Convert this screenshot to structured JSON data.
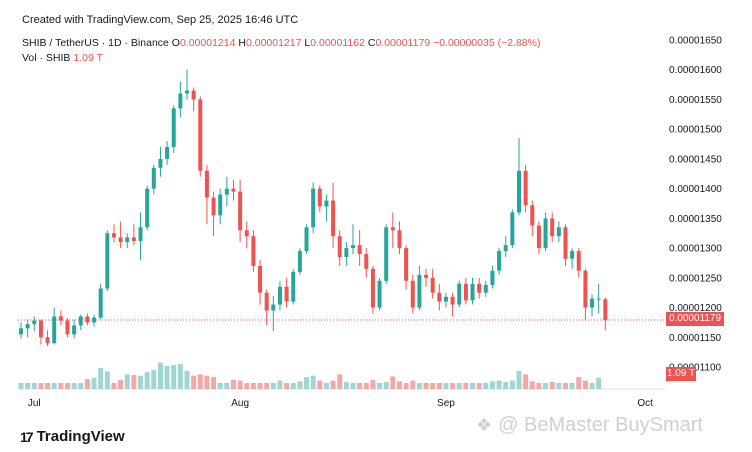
{
  "header": {
    "created": "Created with TradingView.com, Sep 25, 2025 16:46 UTC",
    "symbol": "SHIB / TetherUS · 1D · Binance",
    "ohlc": {
      "o_label": "O",
      "o": "0.00001214",
      "h_label": "H",
      "h": "0.00001217",
      "l_label": "L",
      "l": "0.00001162",
      "c_label": "C",
      "c": "0.00001179",
      "change": "−0.00000035 (−2.88%)"
    },
    "vol_label": "Vol · SHIB",
    "vol_value": "1.09 T"
  },
  "price_tag": "0.00001179",
  "vol_tag": "1.09 T",
  "brand": {
    "logo_mark": "17",
    "name": "TradingView"
  },
  "watermark": {
    "icon": "diamond-logo-icon",
    "text": "@ BeMaster BuySmart"
  },
  "colors": {
    "up": "#26a69a",
    "down": "#ef5350",
    "vol_up": "#9fd6cf",
    "vol_down": "#f4a8a6"
  },
  "chart_data": {
    "type": "candlestick",
    "y_axis": {
      "ticks": [
        "0.00001650",
        "0.00001600",
        "0.00001550",
        "0.00001500",
        "0.00001450",
        "0.00001400",
        "0.00001350",
        "0.00001300",
        "0.00001250",
        "0.00001200",
        "0.00001150",
        "0.00001100"
      ],
      "range": [
        1.09e-05,
        1.66e-05
      ],
      "position": "right"
    },
    "x_axis": {
      "labels": [
        {
          "text": "Jul",
          "index": 2
        },
        {
          "text": "Aug",
          "index": 33
        },
        {
          "text": "Sep",
          "index": 64
        },
        {
          "text": "Oct",
          "index": 94
        }
      ]
    },
    "last_close": 1.179e-05,
    "candles": [
      [
        1.155,
        1.175,
        1.148,
        1.165
      ],
      [
        1.165,
        1.18,
        1.15,
        1.172
      ],
      [
        1.172,
        1.185,
        1.16,
        1.178
      ],
      [
        1.178,
        1.18,
        1.138,
        1.15
      ],
      [
        1.15,
        1.162,
        1.135,
        1.14
      ],
      [
        1.14,
        1.2,
        1.138,
        1.185
      ],
      [
        1.185,
        1.195,
        1.17,
        1.178
      ],
      [
        1.178,
        1.182,
        1.15,
        1.155
      ],
      [
        1.155,
        1.18,
        1.148,
        1.17
      ],
      [
        1.17,
        1.188,
        1.162,
        1.185
      ],
      [
        1.185,
        1.19,
        1.17,
        1.175
      ],
      [
        1.175,
        1.188,
        1.168,
        1.183
      ],
      [
        1.183,
        1.24,
        1.18,
        1.232
      ],
      [
        1.232,
        1.33,
        1.228,
        1.325
      ],
      [
        1.325,
        1.34,
        1.31,
        1.318
      ],
      [
        1.318,
        1.345,
        1.3,
        1.31
      ],
      [
        1.31,
        1.325,
        1.3,
        1.318
      ],
      [
        1.318,
        1.34,
        1.305,
        1.312
      ],
      [
        1.312,
        1.36,
        1.28,
        1.335
      ],
      [
        1.335,
        1.405,
        1.33,
        1.4
      ],
      [
        1.4,
        1.44,
        1.39,
        1.435
      ],
      [
        1.435,
        1.47,
        1.42,
        1.45
      ],
      [
        1.45,
        1.48,
        1.44,
        1.47
      ],
      [
        1.47,
        1.54,
        1.46,
        1.535
      ],
      [
        1.535,
        1.58,
        1.52,
        1.56
      ],
      [
        1.56,
        1.6,
        1.55,
        1.565
      ],
      [
        1.565,
        1.57,
        1.53,
        1.55
      ],
      [
        1.55,
        1.555,
        1.42,
        1.43
      ],
      [
        1.43,
        1.44,
        1.34,
        1.385
      ],
      [
        1.385,
        1.395,
        1.32,
        1.355
      ],
      [
        1.355,
        1.4,
        1.34,
        1.39
      ],
      [
        1.39,
        1.42,
        1.37,
        1.4
      ],
      [
        1.4,
        1.415,
        1.38,
        1.395
      ],
      [
        1.395,
        1.415,
        1.31,
        1.33
      ],
      [
        1.33,
        1.345,
        1.3,
        1.32
      ],
      [
        1.32,
        1.33,
        1.26,
        1.27
      ],
      [
        1.27,
        1.28,
        1.205,
        1.225
      ],
      [
        1.225,
        1.23,
        1.17,
        1.195
      ],
      [
        1.195,
        1.22,
        1.16,
        1.205
      ],
      [
        1.205,
        1.245,
        1.195,
        1.235
      ],
      [
        1.235,
        1.25,
        1.2,
        1.21
      ],
      [
        1.21,
        1.265,
        1.205,
        1.26
      ],
      [
        1.26,
        1.3,
        1.255,
        1.295
      ],
      [
        1.295,
        1.34,
        1.29,
        1.335
      ],
      [
        1.335,
        1.41,
        1.325,
        1.4
      ],
      [
        1.4,
        1.405,
        1.36,
        1.37
      ],
      [
        1.37,
        1.39,
        1.345,
        1.38
      ],
      [
        1.38,
        1.41,
        1.3,
        1.32
      ],
      [
        1.32,
        1.33,
        1.27,
        1.285
      ],
      [
        1.285,
        1.31,
        1.27,
        1.3
      ],
      [
        1.3,
        1.34,
        1.29,
        1.305
      ],
      [
        1.305,
        1.33,
        1.27,
        1.29
      ],
      [
        1.29,
        1.3,
        1.25,
        1.265
      ],
      [
        1.265,
        1.27,
        1.19,
        1.2
      ],
      [
        1.2,
        1.25,
        1.195,
        1.245
      ],
      [
        1.245,
        1.34,
        1.24,
        1.335
      ],
      [
        1.335,
        1.36,
        1.3,
        1.33
      ],
      [
        1.33,
        1.345,
        1.29,
        1.3
      ],
      [
        1.3,
        1.305,
        1.23,
        1.245
      ],
      [
        1.245,
        1.255,
        1.19,
        1.2
      ],
      [
        1.2,
        1.27,
        1.195,
        1.255
      ],
      [
        1.255,
        1.265,
        1.235,
        1.25
      ],
      [
        1.25,
        1.265,
        1.215,
        1.225
      ],
      [
        1.225,
        1.24,
        1.195,
        1.21
      ],
      [
        1.21,
        1.225,
        1.2,
        1.218
      ],
      [
        1.218,
        1.225,
        1.185,
        1.205
      ],
      [
        1.205,
        1.245,
        1.2,
        1.24
      ],
      [
        1.24,
        1.25,
        1.205,
        1.212
      ],
      [
        1.212,
        1.25,
        1.205,
        1.24
      ],
      [
        1.24,
        1.25,
        1.215,
        1.225
      ],
      [
        1.225,
        1.245,
        1.218,
        1.238
      ],
      [
        1.238,
        1.27,
        1.232,
        1.262
      ],
      [
        1.262,
        1.3,
        1.255,
        1.295
      ],
      [
        1.295,
        1.32,
        1.285,
        1.305
      ],
      [
        1.305,
        1.365,
        1.3,
        1.36
      ],
      [
        1.36,
        1.485,
        1.355,
        1.43
      ],
      [
        1.43,
        1.44,
        1.36,
        1.372
      ],
      [
        1.372,
        1.38,
        1.32,
        1.338
      ],
      [
        1.338,
        1.345,
        1.29,
        1.3
      ],
      [
        1.3,
        1.36,
        1.295,
        1.35
      ],
      [
        1.35,
        1.36,
        1.31,
        1.32
      ],
      [
        1.32,
        1.345,
        1.31,
        1.335
      ],
      [
        1.335,
        1.34,
        1.27,
        1.282
      ],
      [
        1.282,
        1.3,
        1.265,
        1.295
      ],
      [
        1.295,
        1.3,
        1.25,
        1.262
      ],
      [
        1.262,
        1.265,
        1.18,
        1.2
      ],
      [
        1.2,
        1.222,
        1.185,
        1.215
      ],
      [
        1.215,
        1.24,
        1.19,
        1.215
      ],
      [
        1.214,
        1.217,
        1.162,
        1.179
      ]
    ],
    "volumes": [
      [
        1,
        1.0
      ],
      [
        1,
        0.97
      ],
      [
        1,
        0.99
      ],
      [
        1,
        0.98
      ],
      [
        1,
        0.96
      ],
      [
        1,
        1.0
      ],
      [
        1,
        0.98
      ],
      [
        1,
        0.96
      ],
      [
        1,
        0.99
      ],
      [
        1,
        0.96
      ],
      [
        1,
        1.07
      ],
      [
        1,
        1.09
      ],
      [
        1,
        1.23
      ],
      [
        1,
        1.18
      ],
      [
        1,
        1.0
      ],
      [
        1,
        1.06
      ],
      [
        1,
        1.14
      ],
      [
        1,
        1.13
      ],
      [
        1,
        1.12
      ],
      [
        1,
        1.17
      ],
      [
        1,
        1.2
      ],
      [
        1,
        1.31
      ],
      [
        1,
        1.26
      ],
      [
        1,
        1.27
      ],
      [
        1,
        1.29
      ],
      [
        1,
        1.19
      ],
      [
        1,
        1.12
      ],
      [
        1,
        1.14
      ],
      [
        1,
        1.12
      ],
      [
        1,
        1.1
      ],
      [
        1,
        1.0
      ],
      [
        1,
        0.99
      ],
      [
        1,
        1.06
      ],
      [
        1,
        1.05
      ],
      [
        1,
        1.0
      ],
      [
        1,
        0.97
      ],
      [
        1,
        0.98
      ],
      [
        1,
        1.0
      ],
      [
        1,
        0.97
      ],
      [
        1,
        1.05
      ],
      [
        1,
        1.0
      ],
      [
        1,
        0.98
      ],
      [
        1,
        1.04
      ],
      [
        1,
        1.1
      ],
      [
        1,
        1.12
      ],
      [
        1,
        1.05
      ],
      [
        1,
        1.02
      ],
      [
        1,
        1.05
      ],
      [
        1,
        1.14
      ],
      [
        1,
        1.03
      ],
      [
        1,
        1.0
      ],
      [
        1,
        0.98
      ],
      [
        1,
        0.99
      ],
      [
        1,
        1.06
      ],
      [
        1,
        0.97
      ],
      [
        1,
        1.03
      ],
      [
        1,
        1.11
      ],
      [
        1,
        1.04
      ],
      [
        1,
        0.98
      ],
      [
        1,
        1.05
      ],
      [
        1,
        1.0
      ],
      [
        1,
        1.0
      ],
      [
        1,
        0.99
      ],
      [
        1,
        0.98
      ],
      [
        1,
        0.99
      ],
      [
        1,
        1.0
      ],
      [
        1,
        0.98
      ],
      [
        1,
        0.97
      ],
      [
        1,
        1.0
      ],
      [
        1,
        0.98
      ],
      [
        1,
        1.02
      ],
      [
        1,
        1.04
      ],
      [
        1,
        1.05
      ],
      [
        1,
        1.03
      ],
      [
        1,
        1.05
      ],
      [
        1,
        1.19
      ],
      [
        1,
        1.14
      ],
      [
        1,
        1.04
      ],
      [
        1,
        1.0
      ],
      [
        1,
        0.98
      ],
      [
        1,
        1.03
      ],
      [
        1,
        1.0
      ],
      [
        1,
        0.99
      ],
      [
        1,
        1.0
      ],
      [
        1,
        1.1
      ],
      [
        1,
        1.05
      ],
      [
        1,
        1.0
      ],
      [
        1,
        1.09
      ]
    ]
  }
}
